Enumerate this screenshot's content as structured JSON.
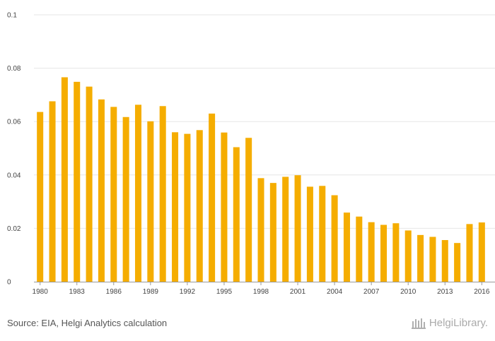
{
  "chart_data": {
    "type": "bar",
    "title": "",
    "xlabel": "",
    "ylabel": "",
    "ylim": [
      0,
      0.1
    ],
    "yticks": [
      0,
      0.02,
      0.04,
      0.06,
      0.08,
      0.1
    ],
    "ytick_labels": [
      "0",
      "0.02",
      "0.04",
      "0.06",
      "0.08",
      "0.1"
    ],
    "xtick_labels": [
      "1980",
      "1983",
      "1986",
      "1989",
      "1992",
      "1995",
      "1998",
      "2001",
      "2004",
      "2007",
      "2010",
      "2013",
      "2016"
    ],
    "categories": [
      "1980",
      "1981",
      "1982",
      "1983",
      "1984",
      "1985",
      "1986",
      "1987",
      "1988",
      "1989",
      "1990",
      "1991",
      "1992",
      "1993",
      "1994",
      "1995",
      "1996",
      "1997",
      "1998",
      "1999",
      "2000",
      "2001",
      "2002",
      "2003",
      "2004",
      "2005",
      "2006",
      "2007",
      "2008",
      "2009",
      "2010",
      "2011",
      "2012",
      "2013",
      "2014",
      "2015",
      "2016"
    ],
    "values": [
      0.0636,
      0.0676,
      0.0766,
      0.0749,
      0.0731,
      0.0683,
      0.0655,
      0.0617,
      0.0663,
      0.0601,
      0.0658,
      0.056,
      0.0554,
      0.0568,
      0.063,
      0.0559,
      0.0504,
      0.0539,
      0.0388,
      0.037,
      0.0393,
      0.0399,
      0.0356,
      0.0359,
      0.0324,
      0.0259,
      0.0244,
      0.0223,
      0.0213,
      0.0219,
      0.0192,
      0.0175,
      0.0168,
      0.0156,
      0.0145,
      0.0216,
      0.0222
    ],
    "bar_color": "#f5ad00",
    "grid": true,
    "grid_color": "#e6e6e6",
    "axis_color": "#999999"
  },
  "footer": {
    "source": "Source: EIA, Helgi Analytics calculation",
    "logo_text": "HelgiLibrary."
  }
}
